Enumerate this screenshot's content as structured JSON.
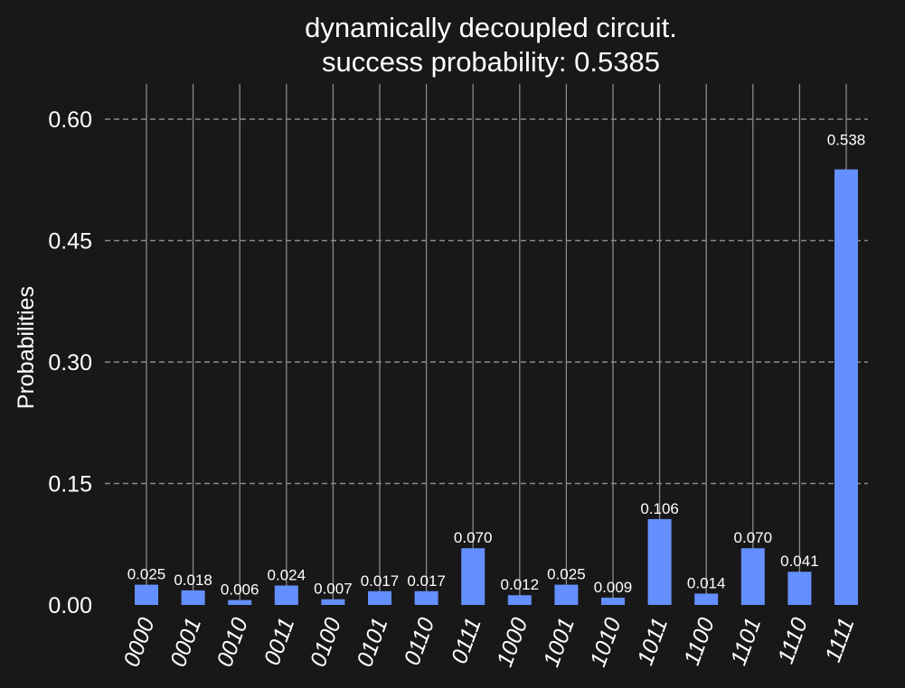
{
  "chart_data": {
    "type": "bar",
    "title": "dynamically decoupled circuit.\nsuccess probability: 0.5385",
    "ylabel": "Probabilities",
    "xlabel": "",
    "ylim": [
      0,
      0.64
    ],
    "yticks": [
      "0.00",
      "0.15",
      "0.30",
      "0.45",
      "0.60"
    ],
    "grid": true,
    "categories": [
      "0000",
      "0001",
      "0010",
      "0011",
      "0100",
      "0101",
      "0110",
      "0111",
      "1000",
      "1001",
      "1010",
      "1011",
      "1100",
      "1101",
      "1110",
      "1111"
    ],
    "values": [
      0.025,
      0.018,
      0.006,
      0.024,
      0.007,
      0.017,
      0.017,
      0.07,
      0.012,
      0.025,
      0.009,
      0.106,
      0.014,
      0.07,
      0.041,
      0.538
    ],
    "value_labels": [
      "0.025",
      "0.018",
      "0.006",
      "0.024",
      "0.007",
      "0.017",
      "0.017",
      "0.070",
      "0.012",
      "0.025",
      "0.009",
      "0.106",
      "0.014",
      "0.070",
      "0.041",
      "0.538"
    ],
    "colors": {
      "background": "#181818",
      "bar": "#648fff",
      "text": "#ffffff",
      "grid": "#8a8a8a"
    }
  }
}
